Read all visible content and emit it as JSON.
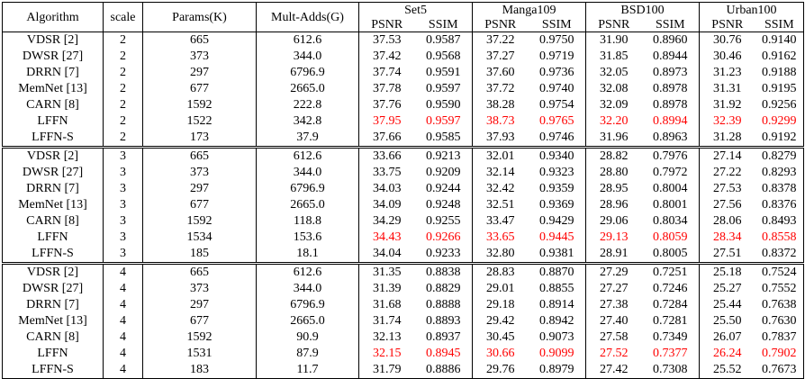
{
  "header": {
    "algorithm": "Algorithm",
    "scale": "scale",
    "params": "Params(K)",
    "mult_adds": "Mult-Adds(G)",
    "datasets": [
      "Set5",
      "Manga109",
      "BSD100",
      "Urban100"
    ],
    "psnr": "PSNR",
    "ssim": "SSIM"
  },
  "groups": [
    {
      "rows": [
        {
          "algorithm": "VDSR [2]",
          "scale": "2",
          "params": "665",
          "mult_adds": "612.6",
          "values": [
            "37.53",
            "0.9587",
            "37.22",
            "0.9750",
            "31.90",
            "0.8960",
            "30.76",
            "0.9140"
          ],
          "best": false
        },
        {
          "algorithm": "DWSR [27]",
          "scale": "2",
          "params": "373",
          "mult_adds": "344.0",
          "values": [
            "37.42",
            "0.9568",
            "37.27",
            "0.9719",
            "31.85",
            "0.8944",
            "30.46",
            "0.9162"
          ],
          "best": false
        },
        {
          "algorithm": "DRRN [7]",
          "scale": "2",
          "params": "297",
          "mult_adds": "6796.9",
          "values": [
            "37.74",
            "0.9591",
            "37.60",
            "0.9736",
            "32.05",
            "0.8973",
            "31.23",
            "0.9188"
          ],
          "best": false
        },
        {
          "algorithm": "MemNet [13]",
          "scale": "2",
          "params": "677",
          "mult_adds": "2665.0",
          "values": [
            "37.78",
            "0.9597",
            "37.72",
            "0.9740",
            "32.08",
            "0.8978",
            "31.31",
            "0.9195"
          ],
          "best": false
        },
        {
          "algorithm": "CARN [8]",
          "scale": "2",
          "params": "1592",
          "mult_adds": "222.8",
          "values": [
            "37.76",
            "0.9590",
            "38.28",
            "0.9754",
            "32.09",
            "0.8978",
            "31.92",
            "0.9256"
          ],
          "best": false
        },
        {
          "algorithm": "LFFN",
          "scale": "2",
          "params": "1522",
          "mult_adds": "342.8",
          "values": [
            "37.95",
            "0.9597",
            "38.73",
            "0.9765",
            "32.20",
            "0.8994",
            "32.39",
            "0.9299"
          ],
          "best": true
        },
        {
          "algorithm": "LFFN-S",
          "scale": "2",
          "params": "173",
          "mult_adds": "37.9",
          "values": [
            "37.66",
            "0.9585",
            "37.93",
            "0.9746",
            "31.96",
            "0.8963",
            "31.28",
            "0.9192"
          ],
          "best": false
        }
      ]
    },
    {
      "rows": [
        {
          "algorithm": "VDSR [2]",
          "scale": "3",
          "params": "665",
          "mult_adds": "612.6",
          "values": [
            "33.66",
            "0.9213",
            "32.01",
            "0.9340",
            "28.82",
            "0.7976",
            "27.14",
            "0.8279"
          ],
          "best": false
        },
        {
          "algorithm": "DWSR [27]",
          "scale": "3",
          "params": "373",
          "mult_adds": "344.0",
          "values": [
            "33.75",
            "0.9209",
            "32.14",
            "0.9323",
            "28.80",
            "0.7972",
            "27.22",
            "0.8293"
          ],
          "best": false
        },
        {
          "algorithm": "DRRN [7]",
          "scale": "3",
          "params": "297",
          "mult_adds": "6796.9",
          "values": [
            "34.03",
            "0.9244",
            "32.42",
            "0.9359",
            "28.95",
            "0.8004",
            "27.53",
            "0.8378"
          ],
          "best": false
        },
        {
          "algorithm": "MemNet [13]",
          "scale": "3",
          "params": "677",
          "mult_adds": "2665.0",
          "values": [
            "34.09",
            "0.9248",
            "32.51",
            "0.9369",
            "28.96",
            "0.8001",
            "27.56",
            "0.8376"
          ],
          "best": false
        },
        {
          "algorithm": "CARN [8]",
          "scale": "3",
          "params": "1592",
          "mult_adds": "118.8",
          "values": [
            "34.29",
            "0.9255",
            "33.47",
            "0.9429",
            "29.06",
            "0.8034",
            "28.06",
            "0.8493"
          ],
          "best": false
        },
        {
          "algorithm": "LFFN",
          "scale": "3",
          "params": "1534",
          "mult_adds": "153.6",
          "values": [
            "34.43",
            "0.9266",
            "33.65",
            "0.9445",
            "29.13",
            "0.8059",
            "28.34",
            "0.8558"
          ],
          "best": true
        },
        {
          "algorithm": "LFFN-S",
          "scale": "3",
          "params": "185",
          "mult_adds": "18.1",
          "values": [
            "34.04",
            "0.9233",
            "32.80",
            "0.9381",
            "28.91",
            "0.8005",
            "27.51",
            "0.8372"
          ],
          "best": false
        }
      ]
    },
    {
      "rows": [
        {
          "algorithm": "VDSR [2]",
          "scale": "4",
          "params": "665",
          "mult_adds": "612.6",
          "values": [
            "31.35",
            "0.8838",
            "28.83",
            "0.8870",
            "27.29",
            "0.7251",
            "25.18",
            "0.7524"
          ],
          "best": false
        },
        {
          "algorithm": "DWSR [27]",
          "scale": "4",
          "params": "373",
          "mult_adds": "344.0",
          "values": [
            "31.39",
            "0.8829",
            "29.01",
            "0.8855",
            "27.27",
            "0.7246",
            "25.27",
            "0.7552"
          ],
          "best": false
        },
        {
          "algorithm": "DRRN [7]",
          "scale": "4",
          "params": "297",
          "mult_adds": "6796.9",
          "values": [
            "31.68",
            "0.8888",
            "29.18",
            "0.8914",
            "27.38",
            "0.7284",
            "25.44",
            "0.7638"
          ],
          "best": false
        },
        {
          "algorithm": "MemNet [13]",
          "scale": "4",
          "params": "677",
          "mult_adds": "2665.0",
          "values": [
            "31.74",
            "0.8893",
            "29.42",
            "0.8942",
            "27.40",
            "0.7281",
            "25.50",
            "0.7630"
          ],
          "best": false
        },
        {
          "algorithm": "CARN [8]",
          "scale": "4",
          "params": "1592",
          "mult_adds": "90.9",
          "values": [
            "32.13",
            "0.8937",
            "30.45",
            "0.9073",
            "27.58",
            "0.7349",
            "26.07",
            "0.7837"
          ],
          "best": false
        },
        {
          "algorithm": "LFFN",
          "scale": "4",
          "params": "1531",
          "mult_adds": "87.9",
          "values": [
            "32.15",
            "0.8945",
            "30.66",
            "0.9099",
            "27.52",
            "0.7377",
            "26.24",
            "0.7902"
          ],
          "best": true
        },
        {
          "algorithm": "LFFN-S",
          "scale": "4",
          "params": "183",
          "mult_adds": "11.7",
          "values": [
            "31.79",
            "0.8886",
            "29.76",
            "0.8979",
            "27.42",
            "0.7308",
            "25.52",
            "0.7673"
          ],
          "best": false
        }
      ]
    }
  ],
  "colors": {
    "best": "#ff0000",
    "text": "#000000"
  }
}
